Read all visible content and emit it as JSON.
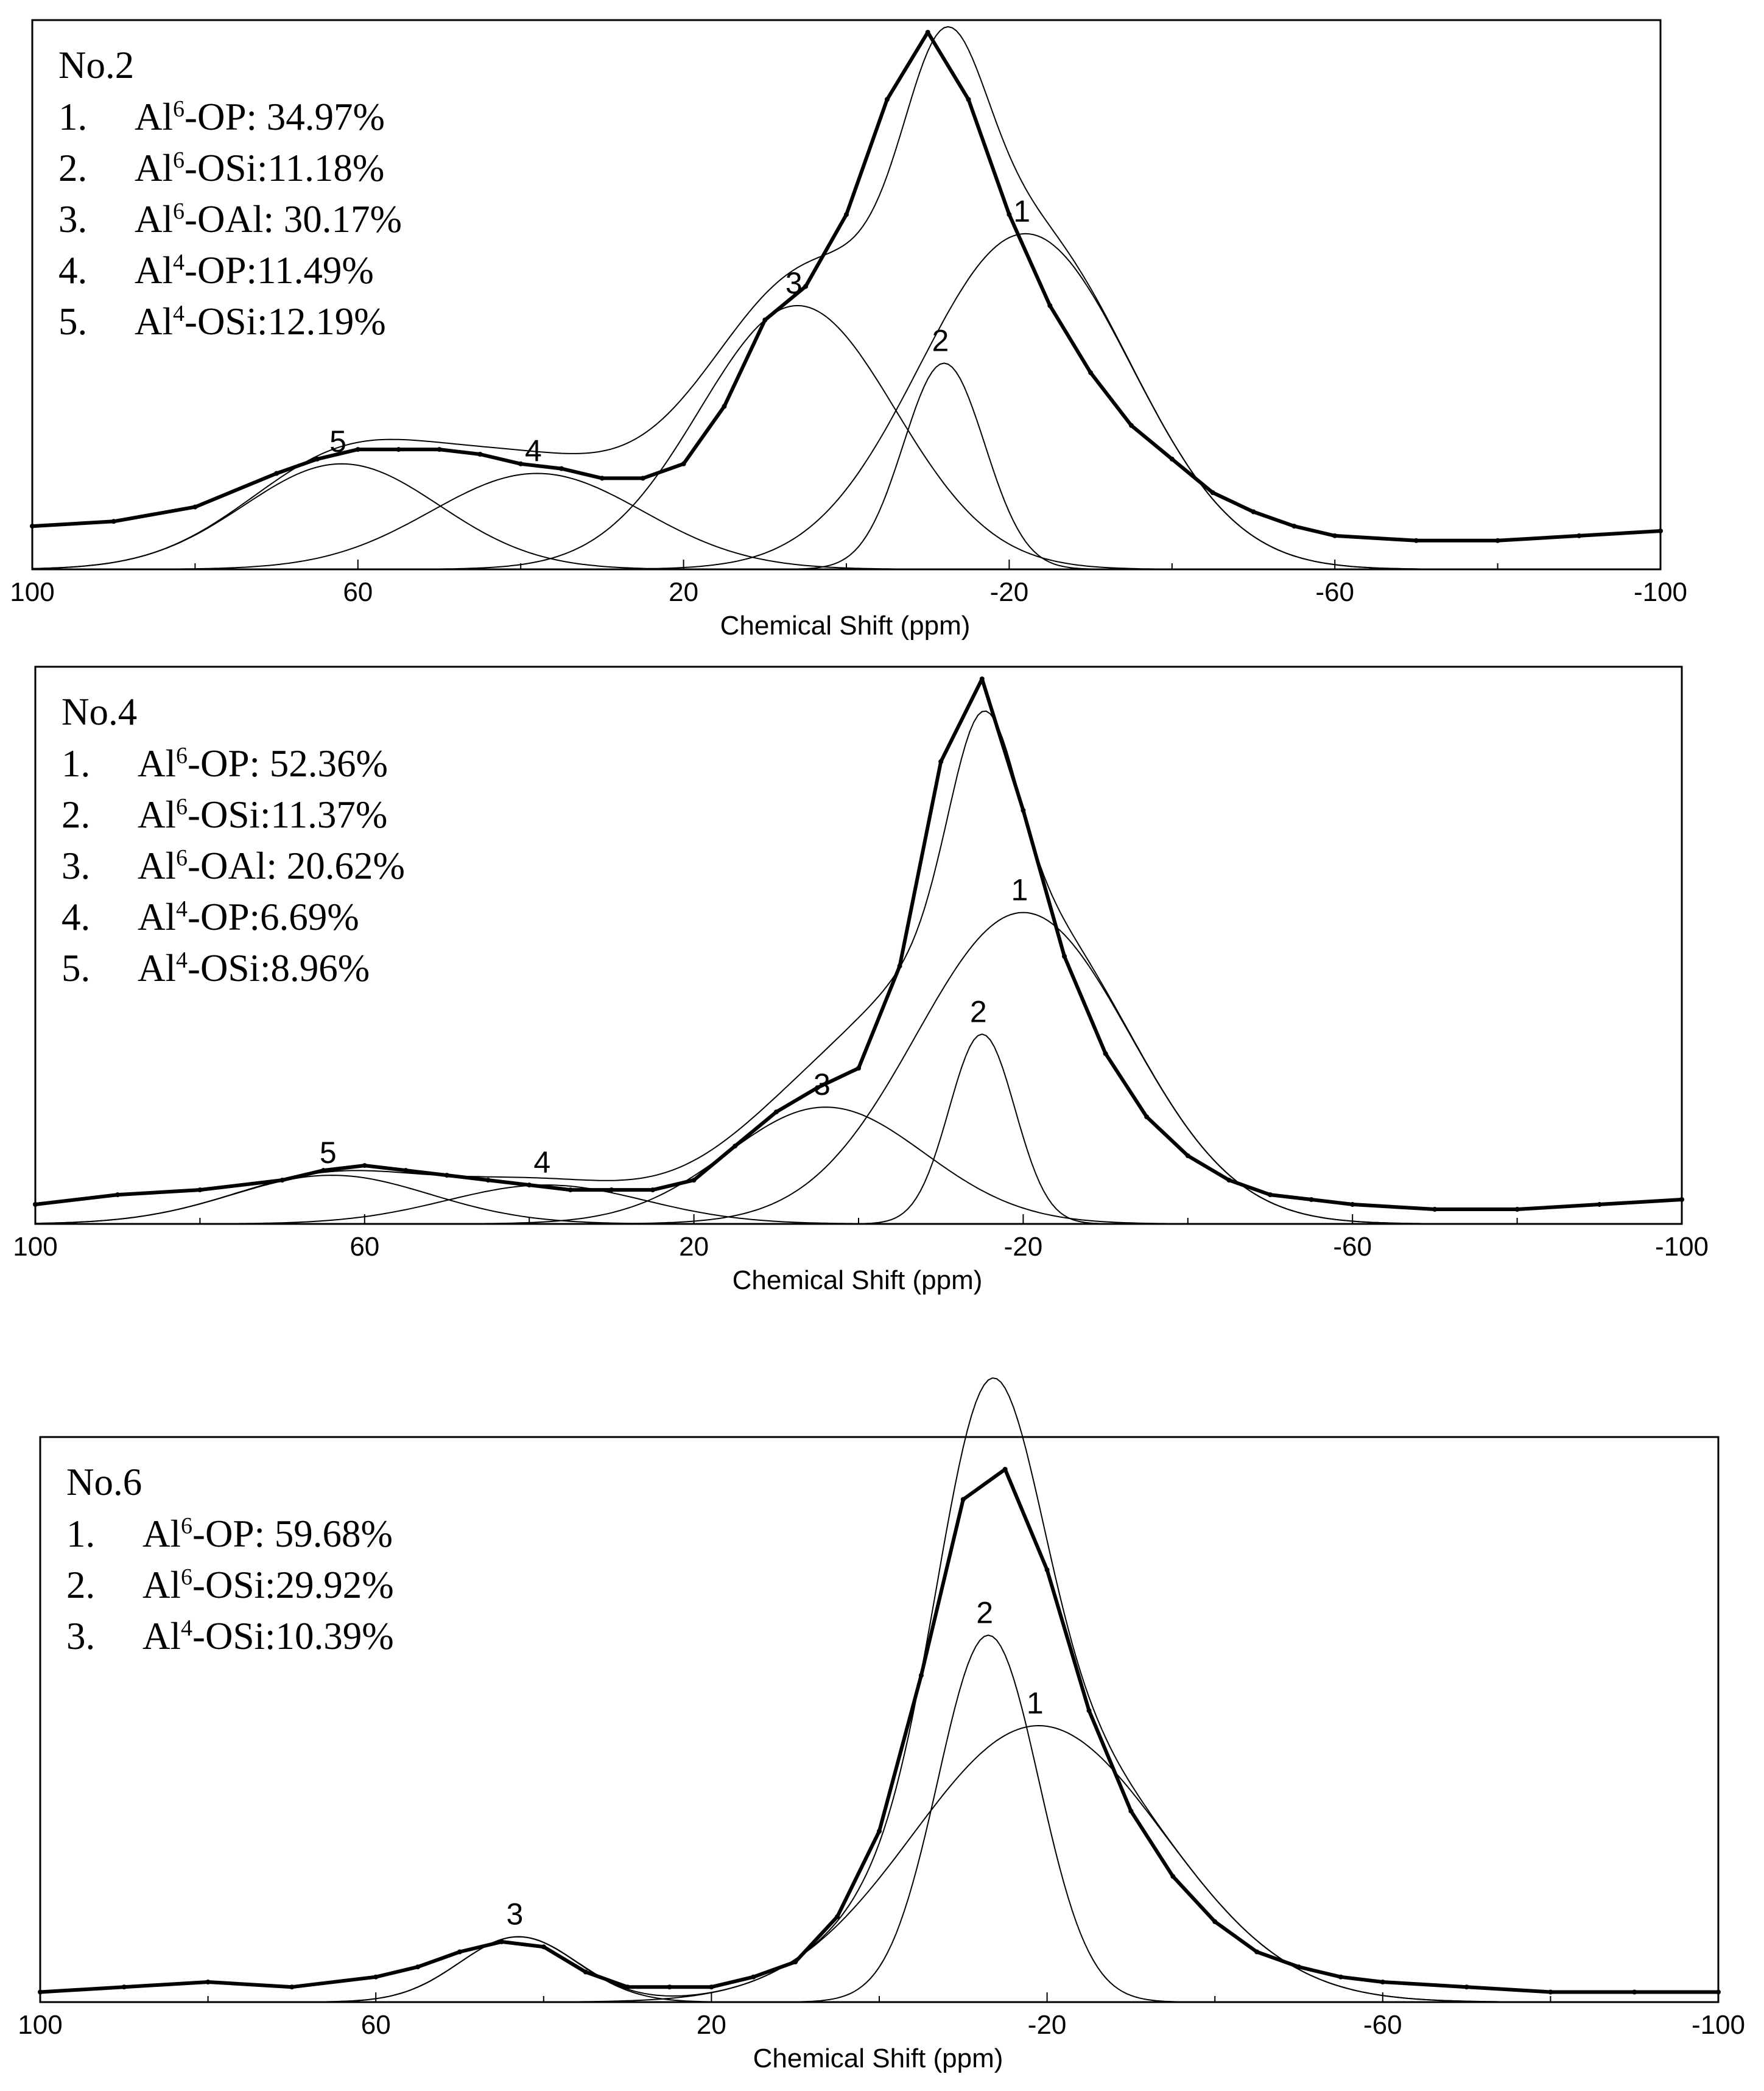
{
  "chart_data": [
    {
      "type": "line",
      "title": "No.2",
      "xlabel": "Chemical Shift (ppm)",
      "ylabel": "",
      "xlim": [
        100,
        -100
      ],
      "ylim": [
        0,
        1.12
      ],
      "x_ticks": [
        100,
        60,
        20,
        -20,
        -60,
        -100
      ],
      "x_tick_labels": [
        "100",
        "60",
        "20",
        "-20",
        "-60",
        "-100"
      ],
      "legend": [
        {
          "num": "1.",
          "pre": "Al",
          "sup": "6",
          "post": "-OP: 34.97%"
        },
        {
          "num": "2.",
          "pre": "Al",
          "sup": "6",
          "post": "-OSi:11.18%"
        },
        {
          "num": "3.",
          "pre": "Al",
          "sup": "6",
          "post": "-OAl: 30.17%"
        },
        {
          "num": "4.",
          "pre": "Al",
          "sup": "4",
          "post": "-OP:11.49%"
        },
        {
          "num": "5.",
          "pre": "Al",
          "sup": "4",
          "post": "-OSi:12.19%"
        }
      ],
      "peaks": [
        {
          "label": "1",
          "center": -22,
          "height": 0.7,
          "width": 13
        },
        {
          "label": "2",
          "center": -12,
          "height": 0.43,
          "width": 5
        },
        {
          "label": "3",
          "center": 6,
          "height": 0.55,
          "width": 12
        },
        {
          "label": "4",
          "center": 38,
          "height": 0.2,
          "width": 13
        },
        {
          "label": "5",
          "center": 62,
          "height": 0.22,
          "width": 12
        }
      ],
      "series": [
        {
          "name": "Experimental",
          "x": [
            100,
            90,
            80,
            70,
            65,
            60,
            55,
            50,
            45,
            40,
            35,
            30,
            25,
            20,
            15,
            10,
            5,
            0,
            -5,
            -10,
            -15,
            -20,
            -25,
            -30,
            -35,
            -40,
            -45,
            -50,
            -55,
            -60,
            -70,
            -80,
            -90,
            -100
          ],
          "values": [
            0.09,
            0.1,
            0.13,
            0.2,
            0.23,
            0.25,
            0.25,
            0.25,
            0.24,
            0.22,
            0.21,
            0.19,
            0.19,
            0.22,
            0.34,
            0.52,
            0.59,
            0.74,
            0.98,
            1.12,
            0.98,
            0.74,
            0.55,
            0.41,
            0.3,
            0.23,
            0.16,
            0.12,
            0.09,
            0.07,
            0.06,
            0.06,
            0.07,
            0.08
          ]
        }
      ]
    },
    {
      "type": "line",
      "title": "No.4",
      "xlabel": "Chemical Shift (ppm)",
      "ylabel": "",
      "xlim": [
        100,
        -100
      ],
      "ylim": [
        0,
        1.12
      ],
      "x_ticks": [
        100,
        60,
        20,
        -20,
        -60,
        -100
      ],
      "x_tick_labels": [
        "100",
        "60",
        "20",
        "-20",
        "-60",
        "-100"
      ],
      "legend": [
        {
          "num": "1.",
          "pre": "Al",
          "sup": "6",
          "post": "-OP: 52.36%"
        },
        {
          "num": "2.",
          "pre": "Al",
          "sup": "6",
          "post": "-OSi:11.37%"
        },
        {
          "num": "3.",
          "pre": "Al",
          "sup": "6",
          "post": "-OAl: 20.62%"
        },
        {
          "num": "4.",
          "pre": "Al",
          "sup": "4",
          "post": "-OP:6.69%"
        },
        {
          "num": "5.",
          "pre": "Al",
          "sup": "4",
          "post": "-OSi:8.96%"
        }
      ],
      "peaks": [
        {
          "label": "1",
          "center": -20,
          "height": 0.64,
          "width": 13
        },
        {
          "label": "2",
          "center": -15,
          "height": 0.39,
          "width": 4
        },
        {
          "label": "3",
          "center": 4,
          "height": 0.24,
          "width": 12
        },
        {
          "label": "4",
          "center": 38,
          "height": 0.08,
          "width": 12
        },
        {
          "label": "5",
          "center": 64,
          "height": 0.1,
          "width": 12
        }
      ],
      "series": [
        {
          "name": "Experimental",
          "x": [
            100,
            90,
            80,
            70,
            65,
            60,
            55,
            50,
            45,
            40,
            35,
            30,
            25,
            20,
            15,
            10,
            5,
            0,
            -5,
            -10,
            -15,
            -20,
            -25,
            -30,
            -35,
            -40,
            -45,
            -50,
            -55,
            -60,
            -70,
            -80,
            -90,
            -100
          ],
          "values": [
            0.04,
            0.06,
            0.07,
            0.09,
            0.11,
            0.12,
            0.11,
            0.1,
            0.09,
            0.08,
            0.07,
            0.07,
            0.07,
            0.09,
            0.16,
            0.23,
            0.28,
            0.32,
            0.53,
            0.95,
            1.12,
            0.85,
            0.55,
            0.35,
            0.22,
            0.14,
            0.09,
            0.06,
            0.05,
            0.04,
            0.03,
            0.03,
            0.04,
            0.05
          ]
        }
      ]
    },
    {
      "type": "line",
      "title": "No.6",
      "xlabel": "Chemical Shift (ppm)",
      "ylabel": "",
      "xlim": [
        100,
        -100
      ],
      "ylim": [
        0,
        1.1
      ],
      "x_ticks": [
        100,
        60,
        20,
        -20,
        -60,
        -100
      ],
      "x_tick_labels": [
        "100",
        "60",
        "20",
        "-20",
        "-60",
        "-100"
      ],
      "legend": [
        {
          "num": "1.",
          "pre": "Al",
          "sup": "6",
          "post": "-OP: 59.68%"
        },
        {
          "num": "2.",
          "pre": "Al",
          "sup": "6",
          "post": "-OSi:29.92%"
        },
        {
          "num": "3.",
          "pre": "Al",
          "sup": "4",
          "post": "-OSi:10.39%"
        }
      ],
      "peaks": [
        {
          "label": "1",
          "center": -19,
          "height": 0.55,
          "width": 15
        },
        {
          "label": "2",
          "center": -13,
          "height": 0.73,
          "width": 6
        },
        {
          "label": "3",
          "center": 43,
          "height": 0.13,
          "width": 7
        }
      ],
      "series": [
        {
          "name": "Experimental",
          "x": [
            100,
            90,
            80,
            70,
            60,
            55,
            50,
            45,
            40,
            35,
            30,
            25,
            20,
            15,
            10,
            5,
            0,
            -5,
            -10,
            -15,
            -20,
            -25,
            -30,
            -35,
            -40,
            -45,
            -50,
            -55,
            -60,
            -70,
            -80,
            -90,
            -100
          ],
          "values": [
            0.02,
            0.03,
            0.04,
            0.03,
            0.05,
            0.07,
            0.1,
            0.12,
            0.11,
            0.06,
            0.03,
            0.03,
            0.03,
            0.05,
            0.08,
            0.17,
            0.34,
            0.65,
            1.0,
            1.06,
            0.86,
            0.58,
            0.38,
            0.25,
            0.16,
            0.1,
            0.07,
            0.05,
            0.04,
            0.03,
            0.02,
            0.02,
            0.02
          ]
        }
      ]
    }
  ]
}
